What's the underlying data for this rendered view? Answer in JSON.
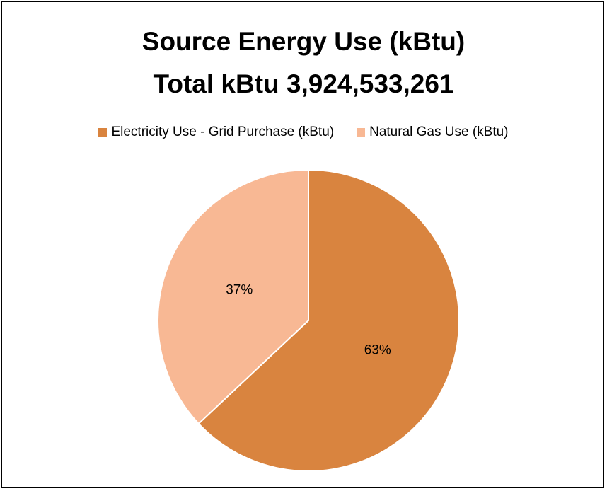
{
  "chart_data": {
    "type": "pie",
    "title": "Source Energy Use (kBtu)",
    "subtitle": "Total kBtu 3,924,533,261",
    "legend_position": "top",
    "slices": [
      {
        "name": "Electricity Use - Grid Purchase (kBtu)",
        "value": 63,
        "label": "63%",
        "color": "#D9843F"
      },
      {
        "name": "Natural Gas Use (kBtu)",
        "value": 37,
        "label": "37%",
        "color": "#F8B894"
      }
    ]
  }
}
